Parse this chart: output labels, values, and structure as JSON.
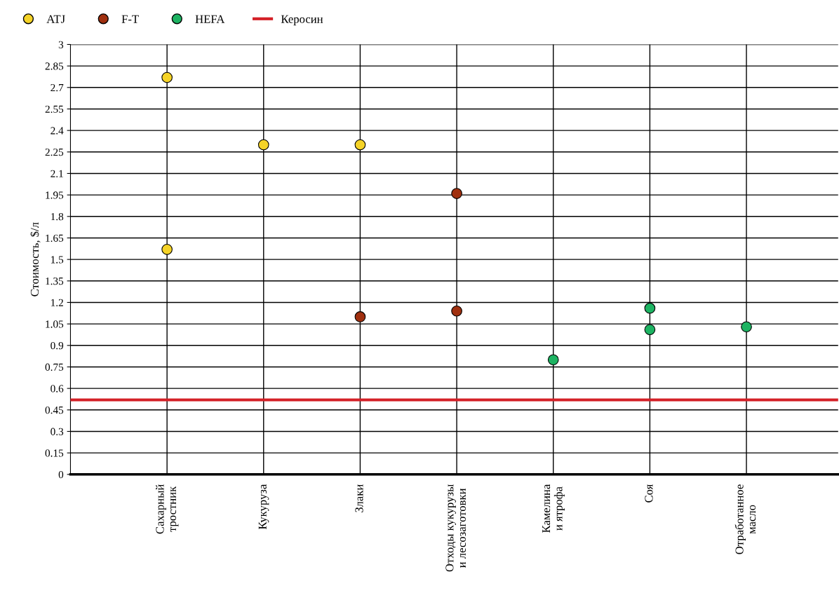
{
  "chart_data": {
    "type": "scatter",
    "ylabel": "Стоимость, $/л",
    "categories": [
      "Сахарный\nтростник",
      "Кукуруза",
      "Злаки",
      "Отходы кукурузы\nи лесозаготовки",
      "Камелина\nи ятрофа",
      "Соя",
      "Отработанное\nмасло"
    ],
    "series": [
      {
        "name": "ATJ",
        "color": "#f5d327",
        "x": [
          "Сахарный\nтростник",
          "Сахарный\nтростник",
          "Кукуруза",
          "Злаки"
        ],
        "values": [
          2.77,
          1.57,
          2.3,
          2.3
        ]
      },
      {
        "name": "F-T",
        "color": "#a0300f",
        "x": [
          "Злаки",
          "Отходы кукурузы\nи лесозаготовки",
          "Отходы кукурузы\nи лесозаготовки"
        ],
        "values": [
          1.1,
          1.96,
          1.14
        ]
      },
      {
        "name": "HEFA",
        "color": "#1db362",
        "x": [
          "Камелина\nи ятрофа",
          "Соя",
          "Соя",
          "Отработанное\nмасло"
        ],
        "values": [
          0.8,
          1.16,
          1.01,
          1.03
        ]
      }
    ],
    "ref_lines": [
      {
        "axis": "y",
        "value": 0.52,
        "label": "Керосин",
        "color": "#d42027",
        "line_style": "solid"
      }
    ],
    "ylim": [
      0,
      3
    ],
    "yticks": [
      0,
      0.15,
      0.3,
      0.45,
      0.6,
      0.75,
      0.9,
      1.05,
      1.2,
      1.35,
      1.5,
      1.65,
      1.8,
      1.95,
      2.1,
      2.25,
      2.4,
      2.55,
      2.7,
      2.85,
      3
    ],
    "grid": true,
    "legend": "top left",
    "marker": "circle"
  }
}
